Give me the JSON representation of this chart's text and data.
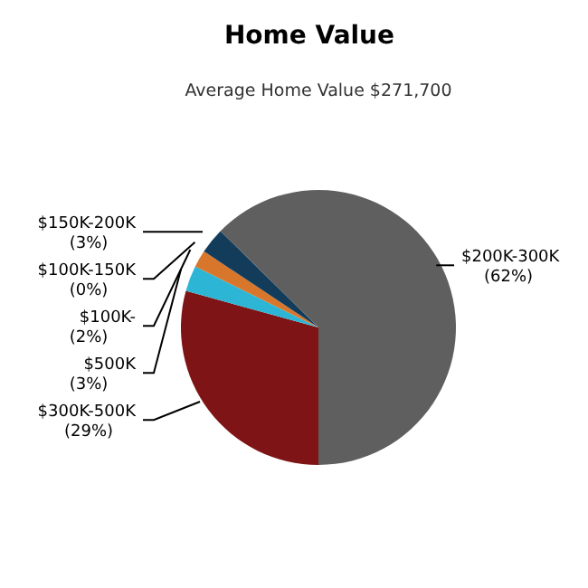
{
  "chart_data": {
    "type": "pie",
    "title": "Home Value",
    "subtitle": "Average Home Value  $271,700",
    "categories": [
      "$300K-500K",
      "$500K",
      "$100K-",
      "$100K-150K",
      "$150K-200K",
      "$200K-300K"
    ],
    "values": [
      29,
      3,
      2,
      0,
      3,
      62
    ],
    "value_labels": [
      "(29%)",
      "(3%)",
      "(2%)",
      "(0%)",
      "(3%)",
      "(62%)"
    ],
    "colors": [
      "#7f1416",
      "#2cb5d4",
      "#d8762b",
      "#8c8c8c",
      "#123c5a",
      "#5f5f5f"
    ]
  }
}
